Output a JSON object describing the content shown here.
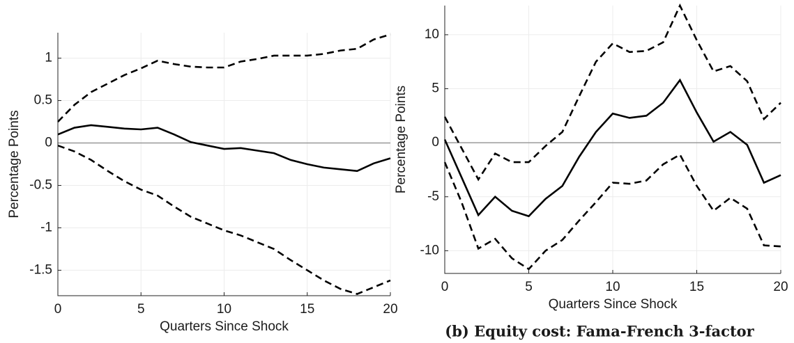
{
  "chart_data": [
    {
      "type": "line",
      "xlabel": "Quarters Since Shock",
      "ylabel": "Percentage Points",
      "x": [
        0,
        1,
        2,
        3,
        4,
        5,
        6,
        7,
        8,
        9,
        10,
        11,
        12,
        13,
        14,
        15,
        16,
        17,
        18,
        19,
        20
      ],
      "xlim": [
        0,
        20
      ],
      "xticks": [
        0,
        5,
        10,
        15,
        20
      ],
      "ylim": [
        -1.8,
        1.3
      ],
      "yticks": [
        -1.5,
        -1,
        -0.5,
        0,
        0.5,
        1
      ],
      "grid": true,
      "hline": 0,
      "series": [
        {
          "color": "#000000",
          "line_style": "solid",
          "values": [
            0.1,
            0.18,
            0.21,
            0.19,
            0.17,
            0.16,
            0.18,
            0.1,
            0.01,
            -0.03,
            -0.07,
            -0.06,
            -0.09,
            -0.12,
            -0.2,
            -0.25,
            -0.29,
            -0.31,
            -0.33,
            -0.24,
            -0.18
          ]
        },
        {
          "color": "#000000",
          "line_style": "dashed",
          "values": [
            0.25,
            0.45,
            0.6,
            0.7,
            0.8,
            0.88,
            0.97,
            0.93,
            0.9,
            0.89,
            0.89,
            0.96,
            0.99,
            1.03,
            1.03,
            1.03,
            1.05,
            1.09,
            1.11,
            1.22,
            1.28
          ]
        },
        {
          "color": "#000000",
          "line_style": "dashed",
          "values": [
            -0.03,
            -0.1,
            -0.2,
            -0.33,
            -0.45,
            -0.55,
            -0.62,
            -0.75,
            -0.87,
            -0.95,
            -1.03,
            -1.09,
            -1.17,
            -1.25,
            -1.38,
            -1.5,
            -1.62,
            -1.72,
            -1.78,
            -1.7,
            -1.62
          ]
        }
      ]
    },
    {
      "type": "line",
      "xlabel": "Quarters Since Shock",
      "ylabel": "Percentage Points",
      "caption": "(b) Equity cost: Fama-French 3-factor",
      "x": [
        0,
        1,
        2,
        3,
        4,
        5,
        6,
        7,
        8,
        9,
        10,
        11,
        12,
        13,
        14,
        15,
        16,
        17,
        18,
        19,
        20
      ],
      "xlim": [
        0,
        20
      ],
      "xticks": [
        0,
        5,
        10,
        15,
        20
      ],
      "ylim": [
        -12.1,
        12.7
      ],
      "yticks": [
        -10,
        -5,
        0,
        5,
        10
      ],
      "grid": true,
      "hline": 0,
      "series": [
        {
          "color": "#000000",
          "line_style": "solid",
          "values": [
            0.3,
            -3.2,
            -6.7,
            -5,
            -6.3,
            -6.8,
            -5.2,
            -4,
            -1.3,
            1,
            2.7,
            2.3,
            2.5,
            3.7,
            5.8,
            2.8,
            0.1,
            1,
            -0.2,
            -3.7,
            -3
          ]
        },
        {
          "color": "#000000",
          "line_style": "dashed",
          "values": [
            2.4,
            -0.5,
            -3.4,
            -1,
            -1.8,
            -1.8,
            -0.3,
            1,
            4.3,
            7.5,
            9.2,
            8.4,
            8.5,
            9.3,
            12.7,
            9.5,
            6.6,
            7.1,
            5.7,
            2.2,
            3.7
          ]
        },
        {
          "color": "#000000",
          "line_style": "dashed",
          "values": [
            -1.8,
            -5.5,
            -9.8,
            -8.9,
            -10.7,
            -11.7,
            -10,
            -9,
            -7.2,
            -5.5,
            -3.7,
            -3.8,
            -3.5,
            -2,
            -1.1,
            -4,
            -6.3,
            -5.1,
            -6.1,
            -9.5,
            -9.6
          ]
        }
      ]
    }
  ]
}
